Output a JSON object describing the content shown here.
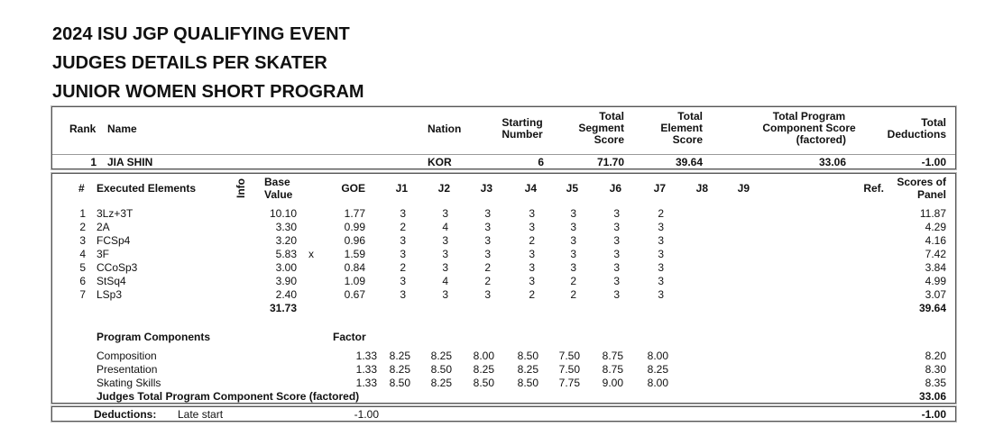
{
  "titles": [
    "2024 ISU JGP QUALIFYING EVENT",
    "JUDGES DETAILS PER SKATER",
    "JUNIOR WOMEN SHORT PROGRAM"
  ],
  "summary": {
    "headers": {
      "rank": "Rank",
      "name": "Name",
      "nation": "Nation",
      "starting_number": [
        "Starting",
        "Number"
      ],
      "tss": [
        "Total",
        "Segment",
        "Score"
      ],
      "tes": [
        "Total",
        "Element",
        "Score"
      ],
      "pcs": [
        "Total Program",
        "Component Score",
        "(factored)"
      ],
      "ded": [
        "Total",
        "Deductions"
      ]
    },
    "rank": "1",
    "name": "JIA SHIN",
    "nation": "KOR",
    "starting_number": "6",
    "tss": "71.70",
    "tes": "39.64",
    "pcs": "33.06",
    "ded": "-1.00"
  },
  "elements": {
    "headers": {
      "num": "#",
      "name": "Executed Elements",
      "info": "Info",
      "base": [
        "Base",
        "Value"
      ],
      "goe": "GOE",
      "judges": [
        "J1",
        "J2",
        "J3",
        "J4",
        "J5",
        "J6",
        "J7",
        "J8",
        "J9"
      ],
      "ref": "Ref.",
      "panel": [
        "Scores of",
        "Panel"
      ]
    },
    "rows": [
      {
        "n": "1",
        "el": "3Lz+3T",
        "info": "",
        "bv": "10.10",
        "goe": "1.77",
        "j": [
          "3",
          "3",
          "3",
          "3",
          "3",
          "3",
          "2"
        ],
        "sp": "11.87"
      },
      {
        "n": "2",
        "el": "2A",
        "info": "",
        "bv": "3.30",
        "goe": "0.99",
        "j": [
          "2",
          "4",
          "3",
          "3",
          "3",
          "3",
          "3"
        ],
        "sp": "4.29"
      },
      {
        "n": "3",
        "el": "FCSp4",
        "info": "",
        "bv": "3.20",
        "goe": "0.96",
        "j": [
          "3",
          "3",
          "3",
          "2",
          "3",
          "3",
          "3"
        ],
        "sp": "4.16"
      },
      {
        "n": "4",
        "el": "3F",
        "info": "x",
        "bv": "5.83",
        "goe": "1.59",
        "j": [
          "3",
          "3",
          "3",
          "3",
          "3",
          "3",
          "3"
        ],
        "sp": "7.42"
      },
      {
        "n": "5",
        "el": "CCoSp3",
        "info": "",
        "bv": "3.00",
        "goe": "0.84",
        "j": [
          "2",
          "3",
          "2",
          "3",
          "3",
          "3",
          "3"
        ],
        "sp": "3.84"
      },
      {
        "n": "6",
        "el": "StSq4",
        "info": "",
        "bv": "3.90",
        "goe": "1.09",
        "j": [
          "3",
          "4",
          "2",
          "3",
          "2",
          "3",
          "3"
        ],
        "sp": "4.99"
      },
      {
        "n": "7",
        "el": "LSp3",
        "info": "",
        "bv": "2.40",
        "goe": "0.67",
        "j": [
          "3",
          "3",
          "3",
          "2",
          "2",
          "3",
          "3"
        ],
        "sp": "3.07"
      }
    ],
    "base_total": "31.73",
    "panel_total": "39.64"
  },
  "components": {
    "header": "Program Components",
    "factor_header": "Factor",
    "rows": [
      {
        "name": "Composition",
        "factor": "1.33",
        "j": [
          "8.25",
          "8.25",
          "8.00",
          "8.50",
          "7.50",
          "8.75",
          "8.00"
        ],
        "score": "8.20"
      },
      {
        "name": "Presentation",
        "factor": "1.33",
        "j": [
          "8.25",
          "8.50",
          "8.25",
          "8.25",
          "7.50",
          "8.75",
          "8.25"
        ],
        "score": "8.30"
      },
      {
        "name": "Skating Skills",
        "factor": "1.33",
        "j": [
          "8.50",
          "8.25",
          "8.50",
          "8.50",
          "7.75",
          "9.00",
          "8.00"
        ],
        "score": "8.35"
      }
    ],
    "total_label": "Judges Total Program Component Score (factored)",
    "total": "33.06"
  },
  "deductions": {
    "label": "Deductions:",
    "item": "Late start",
    "item_value": "-1.00",
    "total": "-1.00"
  }
}
